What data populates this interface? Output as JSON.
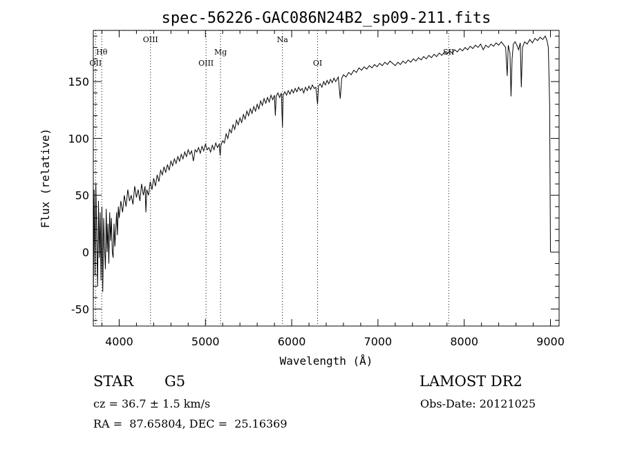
{
  "chart_data": {
    "type": "line",
    "title": "spec-56226-GAC086N24B2_sp09-211.fits",
    "xlabel": "Wavelength (Å)",
    "ylabel": "Flux (relative)",
    "xlim": [
      3700,
      9100
    ],
    "ylim": [
      -65,
      195
    ],
    "xticks": [
      4000,
      5000,
      6000,
      7000,
      8000,
      9000
    ],
    "yticks": [
      -50,
      0,
      50,
      100,
      150
    ],
    "grid": false,
    "series": [
      {
        "points": [
          [
            3700,
            -45
          ],
          [
            3710,
            55
          ],
          [
            3720,
            -20
          ],
          [
            3730,
            60
          ],
          [
            3740,
            10
          ],
          [
            3750,
            -30
          ],
          [
            3760,
            45
          ],
          [
            3770,
            -5
          ],
          [
            3780,
            35
          ],
          [
            3790,
            -25
          ],
          [
            3800,
            40
          ],
          [
            3810,
            -35
          ],
          [
            3820,
            30
          ],
          [
            3830,
            5
          ],
          [
            3840,
            -15
          ],
          [
            3850,
            38
          ],
          [
            3860,
            0
          ],
          [
            3870,
            25
          ],
          [
            3880,
            -10
          ],
          [
            3890,
            35
          ],
          [
            3900,
            10
          ],
          [
            3910,
            30
          ],
          [
            3920,
            0
          ],
          [
            3930,
            -5
          ],
          [
            3940,
            25
          ],
          [
            3950,
            5
          ],
          [
            3960,
            20
          ],
          [
            3970,
            35
          ],
          [
            3980,
            15
          ],
          [
            3990,
            40
          ],
          [
            4000,
            30
          ],
          [
            4020,
            45
          ],
          [
            4040,
            35
          ],
          [
            4060,
            50
          ],
          [
            4080,
            40
          ],
          [
            4100,
            55
          ],
          [
            4120,
            45
          ],
          [
            4140,
            50
          ],
          [
            4160,
            42
          ],
          [
            4180,
            58
          ],
          [
            4200,
            48
          ],
          [
            4220,
            55
          ],
          [
            4240,
            45
          ],
          [
            4260,
            60
          ],
          [
            4280,
            50
          ],
          [
            4300,
            58
          ],
          [
            4310,
            35
          ],
          [
            4320,
            55
          ],
          [
            4340,
            50
          ],
          [
            4360,
            62
          ],
          [
            4380,
            55
          ],
          [
            4400,
            65
          ],
          [
            4420,
            58
          ],
          [
            4440,
            68
          ],
          [
            4460,
            62
          ],
          [
            4480,
            72
          ],
          [
            4500,
            68
          ],
          [
            4520,
            75
          ],
          [
            4540,
            70
          ],
          [
            4560,
            77
          ],
          [
            4580,
            72
          ],
          [
            4600,
            80
          ],
          [
            4620,
            76
          ],
          [
            4640,
            82
          ],
          [
            4660,
            78
          ],
          [
            4680,
            84
          ],
          [
            4700,
            80
          ],
          [
            4720,
            86
          ],
          [
            4740,
            82
          ],
          [
            4760,
            88
          ],
          [
            4780,
            84
          ],
          [
            4800,
            90
          ],
          [
            4820,
            86
          ],
          [
            4840,
            89
          ],
          [
            4860,
            80
          ],
          [
            4880,
            90
          ],
          [
            4900,
            88
          ],
          [
            4920,
            92
          ],
          [
            4940,
            87
          ],
          [
            4960,
            93
          ],
          [
            4980,
            89
          ],
          [
            5000,
            95
          ],
          [
            5020,
            90
          ],
          [
            5040,
            92
          ],
          [
            5060,
            88
          ],
          [
            5080,
            94
          ],
          [
            5100,
            90
          ],
          [
            5120,
            96
          ],
          [
            5140,
            92
          ],
          [
            5160,
            95
          ],
          [
            5170,
            85
          ],
          [
            5180,
            94
          ],
          [
            5200,
            98
          ],
          [
            5220,
            96
          ],
          [
            5240,
            104
          ],
          [
            5260,
            100
          ],
          [
            5280,
            108
          ],
          [
            5300,
            105
          ],
          [
            5320,
            112
          ],
          [
            5340,
            108
          ],
          [
            5360,
            116
          ],
          [
            5380,
            112
          ],
          [
            5400,
            118
          ],
          [
            5420,
            114
          ],
          [
            5440,
            121
          ],
          [
            5460,
            117
          ],
          [
            5480,
            124
          ],
          [
            5500,
            120
          ],
          [
            5520,
            126
          ],
          [
            5540,
            122
          ],
          [
            5560,
            128
          ],
          [
            5580,
            124
          ],
          [
            5600,
            130
          ],
          [
            5620,
            126
          ],
          [
            5640,
            133
          ],
          [
            5660,
            129
          ],
          [
            5680,
            135
          ],
          [
            5700,
            131
          ],
          [
            5720,
            136
          ],
          [
            5740,
            132
          ],
          [
            5760,
            138
          ],
          [
            5780,
            134
          ],
          [
            5800,
            138
          ],
          [
            5810,
            120
          ],
          [
            5820,
            137
          ],
          [
            5840,
            140
          ],
          [
            5860,
            136
          ],
          [
            5880,
            140
          ],
          [
            5893,
            110
          ],
          [
            5900,
            138
          ],
          [
            5920,
            141
          ],
          [
            5940,
            138
          ],
          [
            5960,
            142
          ],
          [
            5980,
            139
          ],
          [
            6000,
            143
          ],
          [
            6020,
            140
          ],
          [
            6040,
            144
          ],
          [
            6060,
            141
          ],
          [
            6080,
            145
          ],
          [
            6100,
            142
          ],
          [
            6120,
            144
          ],
          [
            6140,
            140
          ],
          [
            6160,
            145
          ],
          [
            6180,
            142
          ],
          [
            6200,
            146
          ],
          [
            6220,
            143
          ],
          [
            6240,
            147
          ],
          [
            6260,
            144
          ],
          [
            6280,
            145
          ],
          [
            6300,
            130
          ],
          [
            6310,
            146
          ],
          [
            6330,
            148
          ],
          [
            6350,
            145
          ],
          [
            6370,
            150
          ],
          [
            6390,
            147
          ],
          [
            6410,
            151
          ],
          [
            6430,
            148
          ],
          [
            6450,
            152
          ],
          [
            6470,
            149
          ],
          [
            6490,
            153
          ],
          [
            6510,
            150
          ],
          [
            6540,
            154
          ],
          [
            6563,
            135
          ],
          [
            6580,
            153
          ],
          [
            6600,
            156
          ],
          [
            6630,
            154
          ],
          [
            6660,
            158
          ],
          [
            6690,
            156
          ],
          [
            6720,
            160
          ],
          [
            6750,
            158
          ],
          [
            6780,
            162
          ],
          [
            6810,
            160
          ],
          [
            6840,
            163
          ],
          [
            6870,
            161
          ],
          [
            6900,
            164
          ],
          [
            6930,
            162
          ],
          [
            6960,
            165
          ],
          [
            6990,
            163
          ],
          [
            7020,
            166
          ],
          [
            7050,
            164
          ],
          [
            7080,
            167
          ],
          [
            7110,
            165
          ],
          [
            7140,
            168
          ],
          [
            7170,
            166
          ],
          [
            7200,
            164
          ],
          [
            7230,
            167
          ],
          [
            7260,
            165
          ],
          [
            7290,
            168
          ],
          [
            7320,
            166
          ],
          [
            7350,
            169
          ],
          [
            7380,
            167
          ],
          [
            7410,
            170
          ],
          [
            7440,
            168
          ],
          [
            7470,
            171
          ],
          [
            7500,
            169
          ],
          [
            7530,
            172
          ],
          [
            7560,
            170
          ],
          [
            7590,
            173
          ],
          [
            7620,
            171
          ],
          [
            7650,
            174
          ],
          [
            7680,
            172
          ],
          [
            7710,
            175
          ],
          [
            7740,
            173
          ],
          [
            7770,
            176
          ],
          [
            7800,
            174
          ],
          [
            7830,
            177
          ],
          [
            7860,
            175
          ],
          [
            7890,
            178
          ],
          [
            7920,
            176
          ],
          [
            7950,
            179
          ],
          [
            7980,
            177
          ],
          [
            8010,
            180
          ],
          [
            8040,
            178
          ],
          [
            8070,
            181
          ],
          [
            8100,
            179
          ],
          [
            8130,
            182
          ],
          [
            8160,
            180
          ],
          [
            8190,
            183
          ],
          [
            8220,
            178
          ],
          [
            8250,
            182
          ],
          [
            8280,
            180
          ],
          [
            8310,
            183
          ],
          [
            8340,
            181
          ],
          [
            8370,
            184
          ],
          [
            8400,
            182
          ],
          [
            8430,
            185
          ],
          [
            8460,
            182
          ],
          [
            8480,
            180
          ],
          [
            8498,
            155
          ],
          [
            8510,
            182
          ],
          [
            8530,
            175
          ],
          [
            8542,
            137
          ],
          [
            8555,
            170
          ],
          [
            8570,
            183
          ],
          [
            8590,
            185
          ],
          [
            8610,
            182
          ],
          [
            8630,
            178
          ],
          [
            8650,
            184
          ],
          [
            8662,
            145
          ],
          [
            8675,
            180
          ],
          [
            8700,
            185
          ],
          [
            8730,
            183
          ],
          [
            8760,
            187
          ],
          [
            8790,
            184
          ],
          [
            8820,
            188
          ],
          [
            8850,
            186
          ],
          [
            8880,
            189
          ],
          [
            8910,
            187
          ],
          [
            8940,
            190
          ],
          [
            8960,
            186
          ],
          [
            8975,
            180
          ],
          [
            8990,
            130
          ],
          [
            9000,
            0
          ]
        ]
      }
    ],
    "lines": [
      {
        "label": "OII",
        "x": 3727,
        "label_level": 0
      },
      {
        "label": "Hθ",
        "x": 3798,
        "label_level": 1
      },
      {
        "label": "OIII",
        "x": 4363,
        "label_level": 2
      },
      {
        "label": "OIII",
        "x": 5007,
        "label_level": 0
      },
      {
        "label": "Mg",
        "x": 5175,
        "label_level": 1
      },
      {
        "label": "Na",
        "x": 5893,
        "label_level": 2
      },
      {
        "label": "OI",
        "x": 6300,
        "label_level": 0
      },
      {
        "label": "SII",
        "x": 7820,
        "label_level": 1
      }
    ]
  },
  "info": {
    "object_class": "STAR",
    "subclass": "G5",
    "survey": "LAMOST DR2",
    "cz": "cz = 36.7 ± 1.5 km/s",
    "obs_date": "Obs-Date: 20121025",
    "coords": "RA =  87.65804, DEC =  25.16369"
  }
}
